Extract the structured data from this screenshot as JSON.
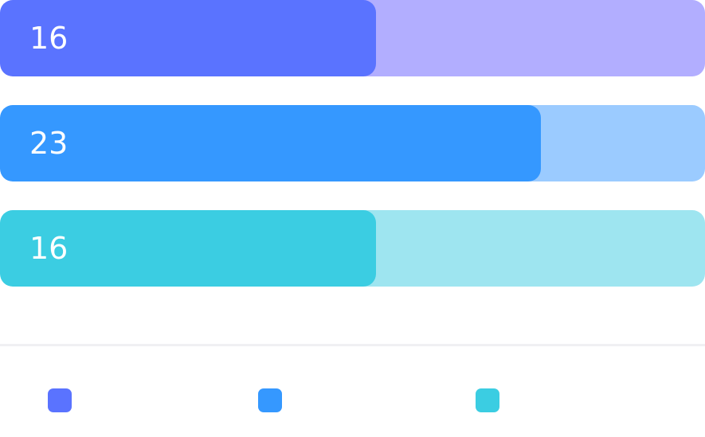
{
  "chart_data": {
    "type": "bar",
    "orientation": "horizontal",
    "max": 30,
    "values": [
      16,
      23,
      16
    ],
    "labels": [
      "16",
      "23",
      "16"
    ],
    "colors": {
      "fill": [
        "#5a73ff",
        "#3598ff",
        "#3bcde2"
      ],
      "track": [
        "#b2aeff",
        "#9bcbff",
        "#9ee5f0"
      ]
    },
    "legend": {
      "position": "bottom",
      "swatches": [
        "#5a73ff",
        "#3598ff",
        "#3bcde2"
      ]
    }
  }
}
